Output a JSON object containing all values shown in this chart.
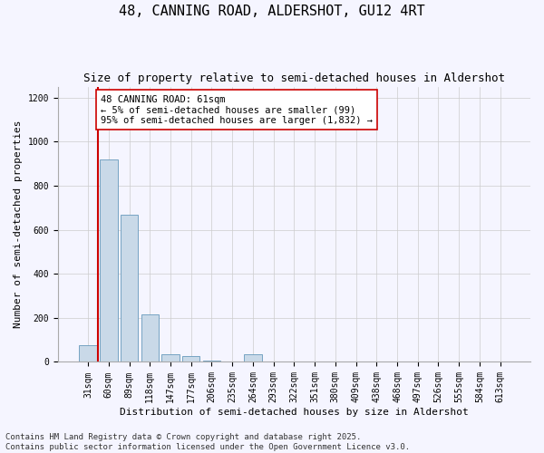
{
  "title_line1": "48, CANNING ROAD, ALDERSHOT, GU12 4RT",
  "title_line2": "Size of property relative to semi-detached houses in Aldershot",
  "xlabel": "Distribution of semi-detached houses by size in Aldershot",
  "ylabel": "Number of semi-detached properties",
  "categories": [
    "31sqm",
    "60sqm",
    "89sqm",
    "118sqm",
    "147sqm",
    "177sqm",
    "206sqm",
    "235sqm",
    "264sqm",
    "293sqm",
    "322sqm",
    "351sqm",
    "380sqm",
    "409sqm",
    "438sqm",
    "468sqm",
    "497sqm",
    "526sqm",
    "555sqm",
    "584sqm",
    "613sqm"
  ],
  "values": [
    75,
    920,
    670,
    215,
    35,
    25,
    8,
    0,
    35,
    0,
    0,
    0,
    0,
    0,
    0,
    0,
    0,
    0,
    0,
    0,
    0
  ],
  "bar_color": "#c9d9e8",
  "bar_edge_color": "#6699bb",
  "vline_color": "#cc0000",
  "annotation_text": "48 CANNING ROAD: 61sqm\n← 5% of semi-detached houses are smaller (99)\n95% of semi-detached houses are larger (1,832) →",
  "annotation_box_color": "#ffffff",
  "annotation_box_edge_color": "#cc0000",
  "ylim": [
    0,
    1250
  ],
  "yticks": [
    0,
    200,
    400,
    600,
    800,
    1000,
    1200
  ],
  "grid_color": "#cccccc",
  "background_color": "#f5f5ff",
  "footnote": "Contains HM Land Registry data © Crown copyright and database right 2025.\nContains public sector information licensed under the Open Government Licence v3.0.",
  "title_fontsize": 11,
  "subtitle_fontsize": 9,
  "annotation_fontsize": 7.5,
  "xlabel_fontsize": 8,
  "ylabel_fontsize": 8,
  "tick_fontsize": 7,
  "footnote_fontsize": 6.5
}
